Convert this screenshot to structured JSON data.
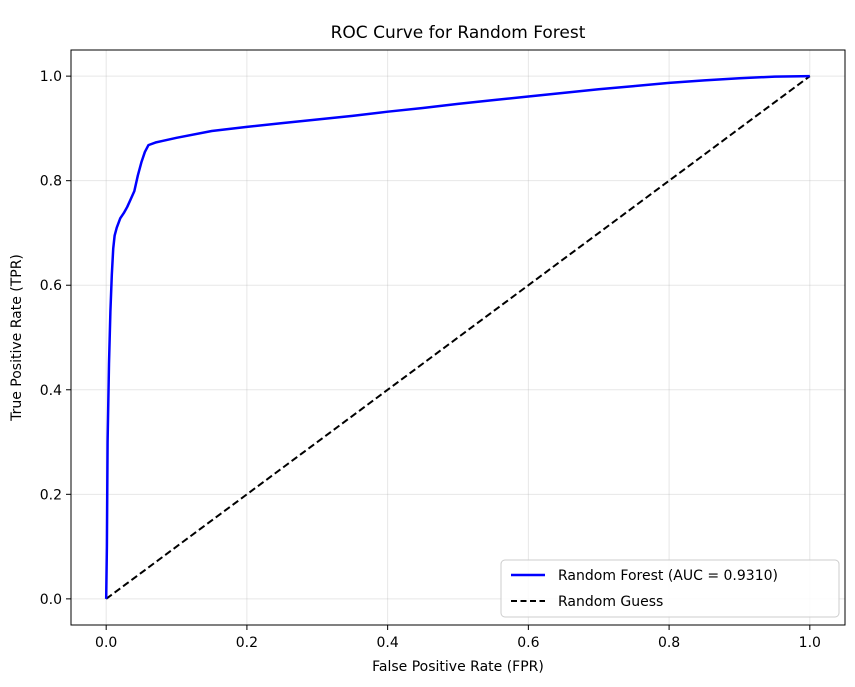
{
  "chart_data": {
    "type": "line",
    "title": "ROC Curve for Random Forest",
    "xlabel": "False Positive Rate (FPR)",
    "ylabel": "True Positive Rate (TPR)",
    "xlim": [
      -0.05,
      1.05
    ],
    "ylim": [
      -0.05,
      1.05
    ],
    "xticks": [
      0.0,
      0.2,
      0.4,
      0.6,
      0.8,
      1.0
    ],
    "yticks": [
      0.0,
      0.2,
      0.4,
      0.6,
      0.8,
      1.0
    ],
    "xtick_labels": [
      "0.0",
      "0.2",
      "0.4",
      "0.6",
      "0.8",
      "1.0"
    ],
    "ytick_labels": [
      "0.0",
      "0.2",
      "0.4",
      "0.6",
      "0.8",
      "1.0"
    ],
    "grid": true,
    "legend_position": "lower-right",
    "series": [
      {
        "name": "Random Forest (AUC = 0.9310)",
        "color": "#0000ff",
        "style": "solid",
        "x": [
          0.0,
          0.001,
          0.002,
          0.004,
          0.006,
          0.008,
          0.01,
          0.012,
          0.015,
          0.02,
          0.025,
          0.03,
          0.035,
          0.04,
          0.045,
          0.05,
          0.055,
          0.06,
          0.07,
          0.08,
          0.1,
          0.15,
          0.2,
          0.25,
          0.3,
          0.35,
          0.4,
          0.45,
          0.5,
          0.55,
          0.6,
          0.65,
          0.7,
          0.75,
          0.8,
          0.85,
          0.9,
          0.95,
          1.0
        ],
        "y": [
          0.0,
          0.1,
          0.3,
          0.45,
          0.55,
          0.62,
          0.67,
          0.695,
          0.71,
          0.728,
          0.738,
          0.75,
          0.765,
          0.78,
          0.81,
          0.835,
          0.855,
          0.868,
          0.873,
          0.876,
          0.882,
          0.895,
          0.903,
          0.91,
          0.917,
          0.924,
          0.932,
          0.939,
          0.947,
          0.954,
          0.961,
          0.968,
          0.975,
          0.981,
          0.987,
          0.992,
          0.996,
          0.999,
          1.0
        ]
      },
      {
        "name": "Random Guess",
        "color": "#000000",
        "style": "dashed",
        "x": [
          0.0,
          1.0
        ],
        "y": [
          0.0,
          1.0
        ]
      }
    ]
  }
}
